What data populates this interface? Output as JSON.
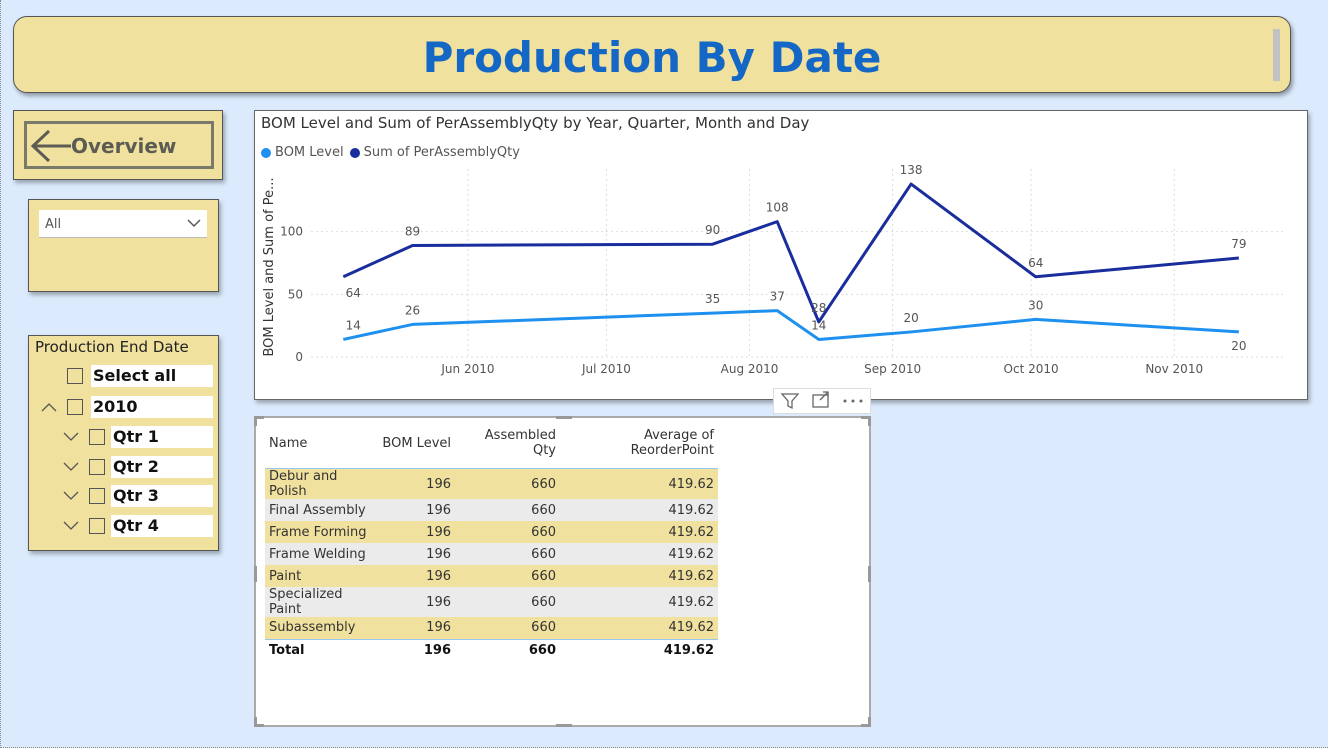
{
  "header": {
    "title": "Production By Date"
  },
  "nav": {
    "overview_label": "Overview"
  },
  "filter": {
    "selected": "All"
  },
  "slicer": {
    "title": "Production End Date",
    "select_all": "Select all",
    "year": "2010",
    "quarters": [
      "Qtr 1",
      "Qtr 2",
      "Qtr 3",
      "Qtr 4"
    ]
  },
  "chart": {
    "title": "BOM Level and Sum of PerAssemblyQty by Year, Quarter, Month and Day",
    "legend": [
      "BOM Level",
      "Sum of PerAssemblyQty"
    ],
    "ylabel": "BOM Level and Sum of Pe...",
    "colors": {
      "bom": "#1e90f0",
      "sum": "#1a2d9c"
    }
  },
  "chart_data": {
    "type": "line",
    "title": "BOM Level and Sum of PerAssemblyQty by Year, Quarter, Month and Day",
    "xlabel": "",
    "ylabel": "BOM Level and Sum of Pe...",
    "x": [
      "2010-05-05",
      "2010-05-20",
      "2010-07-24",
      "2010-08-07",
      "2010-08-16",
      "2010-09-05",
      "2010-10-02",
      "2010-11-15"
    ],
    "x_ticks": [
      "Jun 2010",
      "Jul 2010",
      "Aug 2010",
      "Sep 2010",
      "Oct 2010",
      "Nov 2010"
    ],
    "ylim": [
      0,
      150
    ],
    "y_ticks": [
      0,
      50,
      100
    ],
    "grid": true,
    "legend_position": "top-left",
    "series": [
      {
        "name": "BOM Level",
        "values": [
          14,
          26,
          35,
          37,
          14,
          20,
          30,
          20
        ]
      },
      {
        "name": "Sum of PerAssemblyQty",
        "values": [
          64,
          89,
          90,
          108,
          28,
          138,
          64,
          79
        ]
      }
    ]
  },
  "table": {
    "columns": [
      "Name",
      "BOM Level",
      "Assembled Qty",
      "Average of ReorderPoint"
    ],
    "rows": [
      [
        "Debur and Polish",
        "196",
        "660",
        "419.62"
      ],
      [
        "Final Assembly",
        "196",
        "660",
        "419.62"
      ],
      [
        "Frame Forming",
        "196",
        "660",
        "419.62"
      ],
      [
        "Frame Welding",
        "196",
        "660",
        "419.62"
      ],
      [
        "Paint",
        "196",
        "660",
        "419.62"
      ],
      [
        "Specialized Paint",
        "196",
        "660",
        "419.62"
      ],
      [
        "Subassembly",
        "196",
        "660",
        "419.62"
      ]
    ],
    "total": [
      "Total",
      "196",
      "660",
      "419.62"
    ]
  }
}
